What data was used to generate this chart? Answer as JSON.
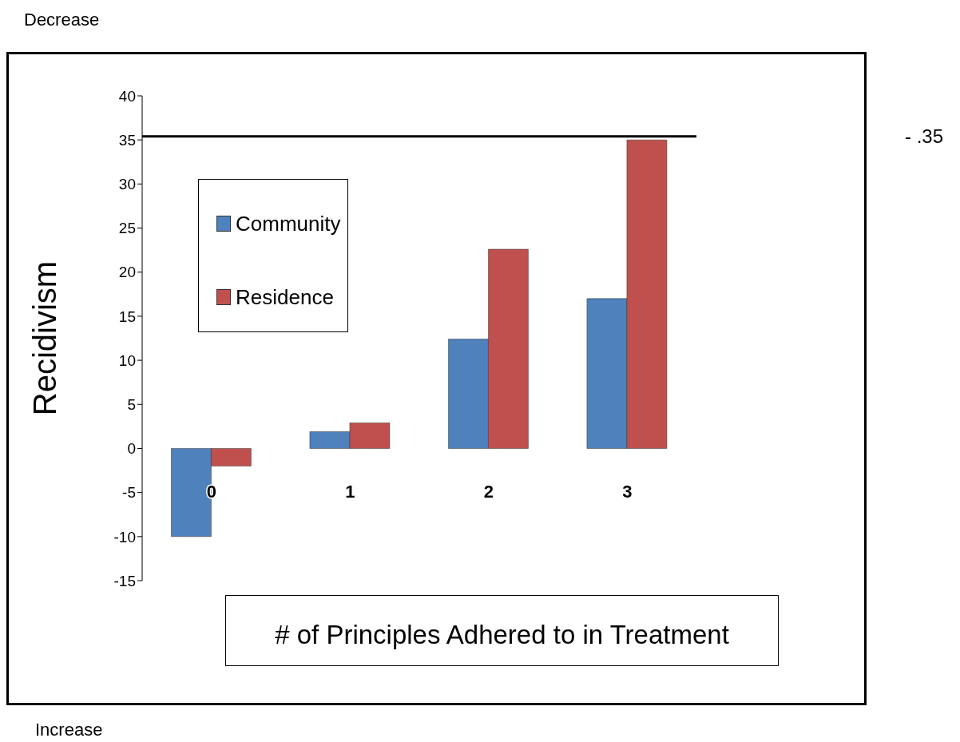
{
  "chart_data": {
    "type": "bar",
    "xlabel": "# of Principles Adhered to in Treatment",
    "ylabel": "Recidivism",
    "categories": [
      "0",
      "1",
      "2",
      "3"
    ],
    "series": [
      {
        "name": "Community",
        "color": "#4f81bd",
        "values": [
          -10,
          1.9,
          12.4,
          17
        ]
      },
      {
        "name": "Residence",
        "color": "#c0504d",
        "values": [
          -2,
          2.9,
          22.6,
          35
        ]
      }
    ],
    "ylim": [
      -15,
      40
    ],
    "yticks": [
      -15,
      -10,
      -5,
      0,
      5,
      10,
      15,
      20,
      25,
      30,
      35,
      40
    ],
    "ref_lines": [
      {
        "axis": "y",
        "value": 35.4,
        "color": "#000000"
      }
    ],
    "annotations": [
      "Decrease",
      "Increase",
      "- .35"
    ],
    "legend": "top left"
  }
}
